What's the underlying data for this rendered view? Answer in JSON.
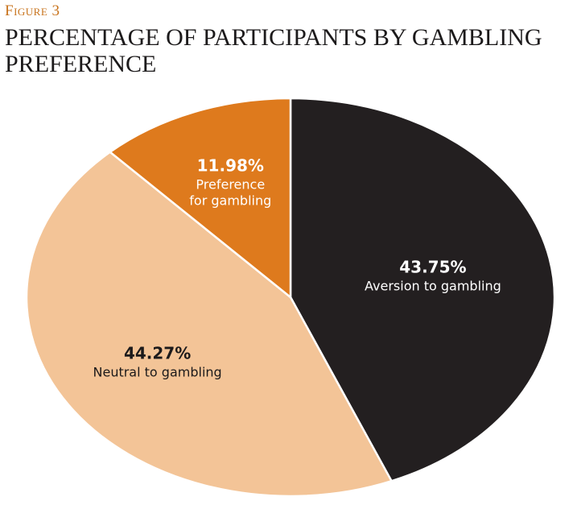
{
  "figure_label": "Figure 3",
  "title": "PERCENTAGE OF PARTICIPANTS BY GAMBLING PREFERENCE",
  "chart_data": {
    "type": "pie",
    "title": "PERCENTAGE OF PARTICIPANTS BY GAMBLING PREFERENCE",
    "unit": "%",
    "slices": [
      {
        "label": "Aversion to gambling",
        "value": 43.75,
        "display": "43.75%",
        "color": "#231f20",
        "text_color": "#ffffff"
      },
      {
        "label": "Neutral to gambling",
        "value": 44.27,
        "display": "44.27%",
        "color": "#f3c497",
        "text_color": "#1c1a1b"
      },
      {
        "label": "Preference for gambling",
        "value": 11.98,
        "display": "11.98%",
        "color": "#de7a1d",
        "text_color": "#ffffff",
        "label_lines": [
          "Preference",
          "for gambling"
        ]
      }
    ],
    "legend": "none"
  }
}
